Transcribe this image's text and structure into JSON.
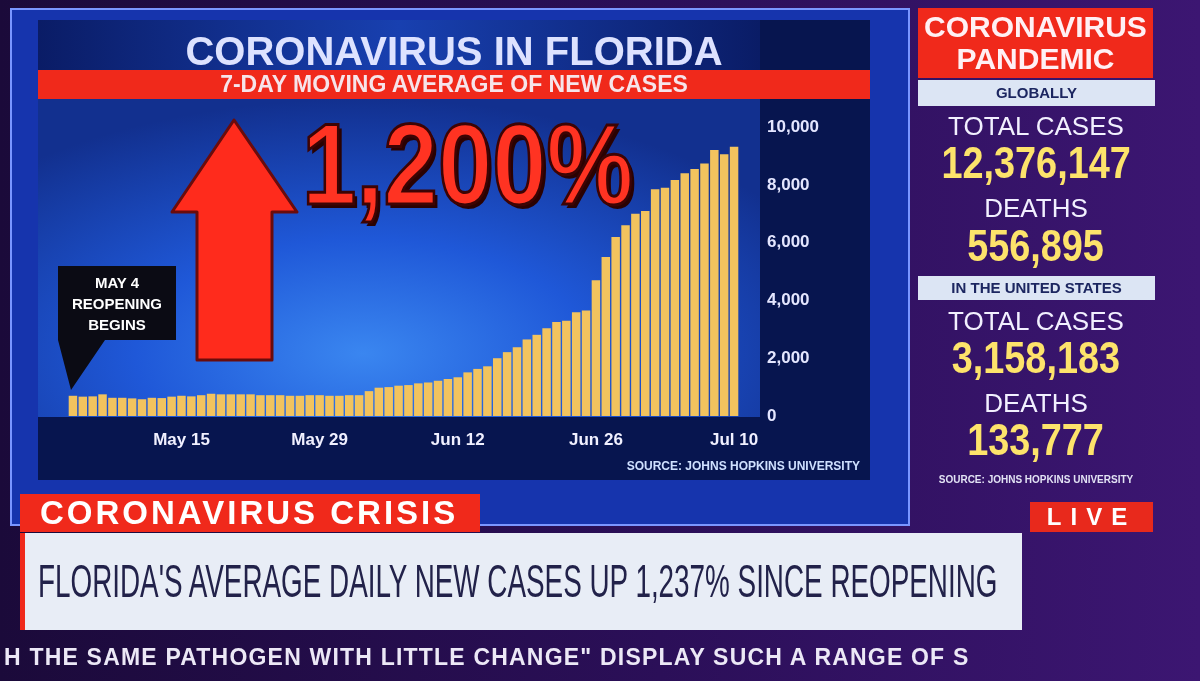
{
  "chart_data": [
    {
      "type": "bar",
      "title": "CORONAVIRUS IN FLORIDA",
      "subtitle": "7-DAY MOVING AVERAGE OF NEW CASES",
      "categories": [
        null,
        null,
        null,
        null,
        null,
        null,
        null,
        null,
        null,
        null,
        null,
        "May 15",
        null,
        null,
        null,
        null,
        null,
        null,
        null,
        null,
        null,
        null,
        null,
        null,
        null,
        "May 29",
        null,
        null,
        null,
        null,
        null,
        null,
        null,
        null,
        null,
        null,
        null,
        null,
        null,
        "Jun 12",
        null,
        null,
        null,
        null,
        null,
        null,
        null,
        null,
        null,
        null,
        null,
        null,
        null,
        "Jun 26",
        null,
        null,
        null,
        null,
        null,
        null,
        null,
        null,
        null,
        null,
        null,
        null,
        null,
        "Jul 10"
      ],
      "values": [
        700,
        670,
        680,
        750,
        630,
        630,
        610,
        580,
        630,
        620,
        670,
        700,
        680,
        720,
        770,
        750,
        750,
        750,
        750,
        720,
        720,
        720,
        700,
        700,
        720,
        720,
        700,
        700,
        720,
        720,
        860,
        980,
        1000,
        1050,
        1070,
        1130,
        1160,
        1220,
        1280,
        1340,
        1510,
        1630,
        1720,
        2000,
        2210,
        2380,
        2650,
        2810,
        3040,
        3250,
        3300,
        3590,
        3650,
        4700,
        5500,
        6200,
        6600,
        7000,
        7100,
        7850,
        7900,
        8170,
        8400,
        8550,
        8740,
        9210,
        9060,
        9320
      ],
      "color": "#f2c35e",
      "ylim": [
        0,
        11000
      ],
      "yticks": [
        0,
        {
          "value": 2000,
          "label": "2,000"
        },
        {
          "value": 4000,
          "label": "4,000"
        },
        {
          "value": 6000,
          "label": "6,000"
        },
        {
          "value": 8000,
          "label": "8,000"
        },
        {
          "value": 10000,
          "label": "10,000"
        }
      ],
      "annotations": [
        "MAY 4 REOPENING BEGINS",
        "1,200%",
        "SOURCE: JOHNS HOPKINS UNIVERSITY"
      ]
    },
    {
      "type": "other",
      "title": "CORONAVIRUS PANDEMIC",
      "annotations": [
        "GLOBALLY",
        "TOTAL CASES",
        "12,376,147",
        "DEATHS",
        "556,895",
        "IN THE UNITED STATES",
        "TOTAL CASES",
        "3,158,183",
        "DEATHS",
        "133,777",
        "SOURCE: JOHNS HOPKINS UNIVERSITY"
      ]
    },
    {
      "type": "other",
      "title": "CORONAVIRUS CRISIS",
      "subtitle": "FLORIDA'S AVERAGE DAILY NEW CASES UP 1,237% SINCE REOPENING",
      "annotations": [
        "LIVE",
        "H THE SAME PATHOGEN WITH LITTLE CHANGE\" DISPLAY SUCH A RANGE OF S"
      ]
    }
  ]
}
